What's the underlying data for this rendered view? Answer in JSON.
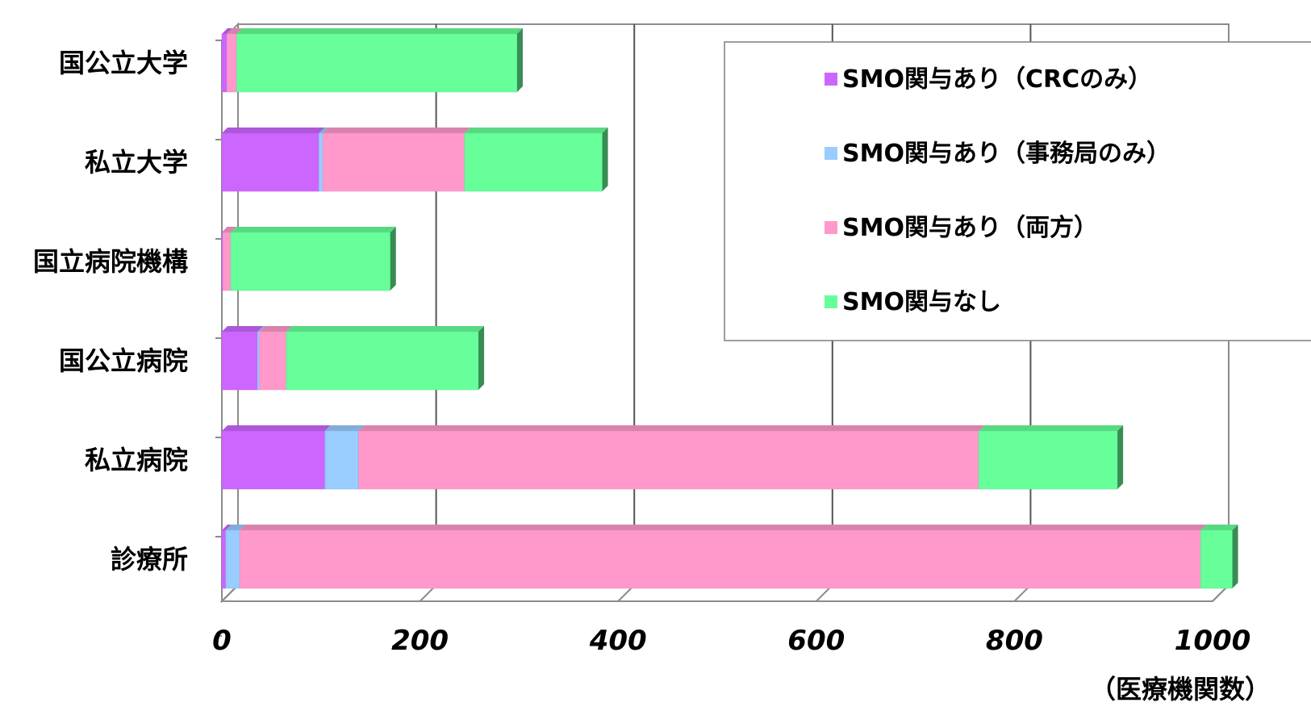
{
  "chart_data": {
    "type": "bar",
    "orientation": "horizontal",
    "stacked": true,
    "categories": [
      "国公立大学",
      "私立大学",
      "国立病院機構",
      "国公立病院",
      "私立病院",
      "診療所"
    ],
    "series": [
      {
        "name": "SMO関与あり（CRCのみ）",
        "color": "#CC66FF",
        "values": [
          5,
          98,
          1,
          36,
          104,
          4
        ]
      },
      {
        "name": "SMO関与あり（事務局のみ）",
        "color": "#99CCFF",
        "values": [
          0,
          4,
          0,
          2,
          34,
          14
        ]
      },
      {
        "name": "SMO関与あり（両方）",
        "color": "#FF99CC",
        "values": [
          10,
          143,
          8,
          27,
          626,
          970
        ]
      },
      {
        "name": "SMO関与なし",
        "color": "#66FF99",
        "values": [
          283,
          139,
          161,
          194,
          140,
          32
        ]
      }
    ],
    "xlim": [
      0,
      1000
    ],
    "xticks": [
      "0",
      "200",
      "400",
      "600",
      "800",
      "1000"
    ],
    "xlabel": "（医療機関数）",
    "ylabel": "",
    "grid": true,
    "legend_position": "top-right",
    "style": "3d"
  }
}
